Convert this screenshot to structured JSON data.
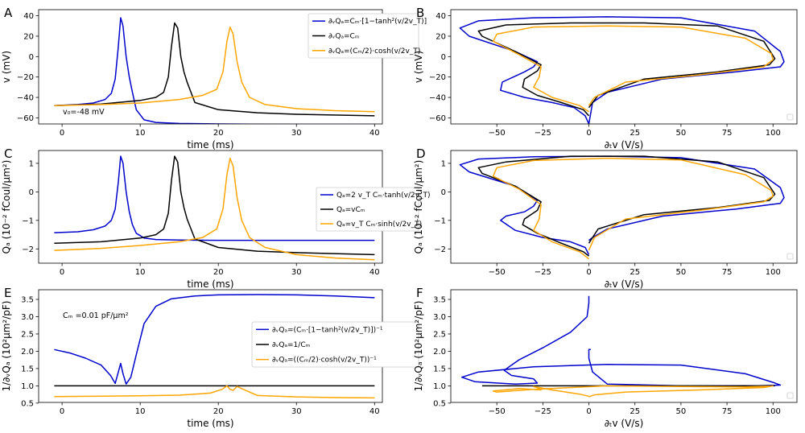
{
  "colors": {
    "blue": "#0000cc",
    "black": "#000000",
    "orange": "#ffa500"
  },
  "chart_data": [
    {
      "id": "A",
      "panel_label": "A",
      "type": "line",
      "xlabel": "time (ms)",
      "ylabel": "v (mV)",
      "xlim": [
        -3,
        41
      ],
      "ylim": [
        -66,
        46
      ],
      "xticks": [
        0,
        10,
        20,
        30,
        40
      ],
      "xtick_labels": [
        "0",
        "10",
        "20",
        "30",
        "40"
      ],
      "yticks": [
        -60,
        -40,
        -20,
        0,
        20,
        40
      ],
      "ytick_labels": [
        "−60",
        "−40",
        "−20",
        "0",
        "20",
        "40"
      ],
      "annotation": "v₀=-48 mV",
      "legend": [
        {
          "color": "blue",
          "label": "∂ᵥQₐ=Cₘ·[1−tanh²(v/2v_T)]"
        },
        {
          "color": "black",
          "label": "∂ᵥQₐ=Cₘ"
        },
        {
          "color": "orange",
          "label": "∂ᵥQₐ=(Cₘ/2)·cosh(v/2v_T)"
        }
      ],
      "series": [
        {
          "color": "blue",
          "x": [
            -1,
            2,
            4,
            5.5,
            6.3,
            6.8,
            7.2,
            7.5,
            7.8,
            8.2,
            8.6,
            9.0,
            9.5,
            10.5,
            12,
            15,
            20,
            30,
            40
          ],
          "y": [
            -48,
            -47,
            -45.5,
            -42,
            -36,
            -22,
            10,
            38,
            30,
            0,
            -20,
            -35,
            -52,
            -62,
            -64.5,
            -65.5,
            -66,
            -66.5,
            -66.5
          ]
        },
        {
          "color": "black",
          "x": [
            -1,
            5,
            10,
            12,
            13,
            13.6,
            14.0,
            14.4,
            14.8,
            15.2,
            15.6,
            16.0,
            17,
            20,
            25,
            30,
            40
          ],
          "y": [
            -48,
            -46.5,
            -43,
            -40,
            -35,
            -20,
            10,
            33,
            28,
            0,
            -15,
            -25,
            -45,
            -52,
            -55,
            -56.5,
            -58
          ]
        },
        {
          "color": "orange",
          "x": [
            -1,
            5,
            10,
            15,
            18,
            19.8,
            20.6,
            21.1,
            21.5,
            21.9,
            22.4,
            23,
            24,
            26,
            30,
            35,
            40
          ],
          "y": [
            -48,
            -47,
            -45.5,
            -42,
            -38,
            -32,
            -15,
            15,
            29,
            22,
            -5,
            -25,
            -40,
            -47,
            -51,
            -53,
            -54
          ]
        }
      ]
    },
    {
      "id": "B",
      "panel_label": "B",
      "type": "line",
      "xlabel": "∂ₜv (V/s)",
      "ylabel": "v (mV)",
      "xlim": [
        -75,
        113
      ],
      "ylim": [
        -66,
        46
      ],
      "xticks": [
        -50,
        -25,
        0,
        25,
        50,
        75,
        100
      ],
      "xtick_labels": [
        "−50",
        "−25",
        "0",
        "25",
        "50",
        "75",
        "100"
      ],
      "yticks": [
        -60,
        -40,
        -20,
        0,
        20,
        40
      ],
      "ytick_labels": [
        "−60",
        "−40",
        "−20",
        "0",
        "20",
        "40"
      ],
      "series": [
        {
          "color": "blue",
          "x": [
            0,
            -2,
            -8,
            -20,
            -35,
            -48,
            -47,
            -35,
            -30,
            -28,
            -40,
            -65,
            -70,
            -60,
            -30,
            10,
            50,
            90,
            104,
            106,
            104,
            80,
            40,
            10,
            2,
            0
          ],
          "y": [
            -66,
            -58,
            -50,
            -45,
            -40,
            -33,
            -25,
            -15,
            -10,
            -5,
            5,
            20,
            28,
            35,
            38,
            39,
            38,
            25,
            5,
            -5,
            -10,
            -15,
            -22,
            -35,
            -45,
            -66
          ]
        },
        {
          "color": "black",
          "x": [
            0,
            -3,
            -15,
            -28,
            -36,
            -35,
            -28,
            -26,
            -40,
            -58,
            -60,
            -45,
            -10,
            30,
            70,
            95,
            101,
            98,
            70,
            30,
            5,
            0
          ],
          "y": [
            -58,
            -52,
            -45,
            -38,
            -30,
            -22,
            -14,
            -8,
            5,
            20,
            25,
            31,
            33,
            33,
            30,
            15,
            -2,
            -8,
            -15,
            -22,
            -38,
            -50
          ]
        },
        {
          "color": "orange",
          "x": [
            0,
            -5,
            -20,
            -30,
            -27,
            -26,
            -38,
            -52,
            -50,
            -30,
            10,
            50,
            85,
            99,
            100,
            95,
            60,
            20,
            3,
            0
          ],
          "y": [
            -54,
            -48,
            -40,
            -30,
            -20,
            -10,
            2,
            15,
            22,
            29,
            30,
            29,
            18,
            3,
            -3,
            -10,
            -18,
            -25,
            -40,
            -48
          ]
        }
      ]
    },
    {
      "id": "C",
      "panel_label": "C",
      "type": "line",
      "xlabel": "time (ms)",
      "ylabel": "Qₐ (10⁻² fCoul/μm²)",
      "xlim": [
        -3,
        41
      ],
      "ylim": [
        -2.5,
        1.45
      ],
      "xticks": [
        0,
        10,
        20,
        30,
        40
      ],
      "xtick_labels": [
        "0",
        "10",
        "20",
        "30",
        "40"
      ],
      "yticks": [
        -2,
        -1,
        0,
        1
      ],
      "ytick_labels": [
        "−2",
        "−1",
        "0",
        "1"
      ],
      "legend": [
        {
          "color": "blue",
          "label": "Qₐ=2 v_T Cₘ·tanh(v/2v_T)"
        },
        {
          "color": "black",
          "label": "Qₐ=vCₘ"
        },
        {
          "color": "orange",
          "label": "Qₐ=v_T Cₘ·sinh(v/2v_T)"
        }
      ],
      "series": [
        {
          "color": "blue",
          "x": [
            -1,
            2,
            4,
            5.5,
            6.3,
            6.8,
            7.2,
            7.5,
            7.8,
            8.2,
            8.6,
            9.0,
            9.5,
            10.5,
            12,
            15,
            20,
            30,
            40
          ],
          "y": [
            -1.43,
            -1.4,
            -1.33,
            -1.2,
            -1.0,
            -0.6,
            0.35,
            1.25,
            1.0,
            0.0,
            -0.7,
            -1.15,
            -1.45,
            -1.62,
            -1.67,
            -1.69,
            -1.7,
            -1.7,
            -1.7
          ]
        },
        {
          "color": "black",
          "x": [
            -1,
            5,
            10,
            12,
            13,
            13.6,
            14.0,
            14.4,
            14.8,
            15.2,
            15.6,
            16.0,
            17,
            20,
            25,
            30,
            40
          ],
          "y": [
            -1.8,
            -1.75,
            -1.62,
            -1.5,
            -1.3,
            -0.75,
            0.4,
            1.25,
            1.05,
            0.0,
            -0.55,
            -0.95,
            -1.65,
            -1.95,
            -2.08,
            -2.13,
            -2.2
          ]
        },
        {
          "color": "orange",
          "x": [
            -1,
            5,
            10,
            15,
            18,
            19.8,
            20.6,
            21.1,
            21.5,
            21.9,
            22.4,
            23,
            24,
            26,
            30,
            35,
            40
          ],
          "y": [
            -2.05,
            -1.98,
            -1.88,
            -1.75,
            -1.6,
            -1.3,
            -0.6,
            0.6,
            1.18,
            0.9,
            -0.2,
            -1.0,
            -1.6,
            -1.95,
            -2.2,
            -2.32,
            -2.38
          ]
        }
      ]
    },
    {
      "id": "D",
      "panel_label": "D",
      "type": "line",
      "xlabel": "∂ₜv (V/s)",
      "ylabel": "Qₐ (10⁻² fCoul/μm²)",
      "xlim": [
        -75,
        113
      ],
      "ylim": [
        -2.5,
        1.45
      ],
      "xticks": [
        -50,
        -25,
        0,
        25,
        50,
        75,
        100
      ],
      "xtick_labels": [
        "−50",
        "−25",
        "0",
        "25",
        "50",
        "75",
        "100"
      ],
      "yticks": [
        -2,
        -1,
        0,
        1
      ],
      "ytick_labels": [
        "−2",
        "−1",
        "0",
        "1"
      ],
      "series": [
        {
          "color": "blue",
          "x": [
            0,
            -2,
            -10,
            -25,
            -40,
            -48,
            -45,
            -35,
            -30,
            -28,
            -40,
            -65,
            -70,
            -60,
            -30,
            10,
            50,
            90,
            104,
            106,
            104,
            80,
            40,
            10,
            2,
            0
          ],
          "y": [
            -2.2,
            -1.95,
            -1.75,
            -1.6,
            -1.35,
            -1.0,
            -0.85,
            -0.7,
            -0.5,
            -0.3,
            0.2,
            0.7,
            0.95,
            1.15,
            1.23,
            1.25,
            1.2,
            0.8,
            0.15,
            -0.2,
            -0.4,
            -0.6,
            -0.85,
            -1.3,
            -1.6,
            -1.7
          ]
        },
        {
          "color": "black",
          "x": [
            0,
            -3,
            -15,
            -28,
            -36,
            -35,
            -28,
            -26,
            -40,
            -58,
            -60,
            -45,
            -10,
            30,
            70,
            95,
            101,
            98,
            70,
            30,
            5,
            0
          ],
          "y": [
            -2.25,
            -2.1,
            -1.8,
            -1.45,
            -1.15,
            -0.95,
            -0.65,
            -0.35,
            0.2,
            0.65,
            0.85,
            1.05,
            1.25,
            1.25,
            1.05,
            0.5,
            -0.08,
            -0.3,
            -0.55,
            -0.8,
            -1.3,
            -1.8
          ]
        },
        {
          "color": "orange",
          "x": [
            0,
            -5,
            -20,
            -30,
            -27,
            -26,
            -38,
            -52,
            -50,
            -30,
            10,
            50,
            85,
            99,
            100,
            95,
            60,
            20,
            3,
            0
          ],
          "y": [
            -2.35,
            -2.1,
            -1.75,
            -1.35,
            -0.95,
            -0.45,
            0.1,
            0.55,
            0.85,
            1.1,
            1.18,
            1.12,
            0.6,
            0.05,
            -0.15,
            -0.35,
            -0.65,
            -0.95,
            -1.6,
            -2.05
          ]
        }
      ]
    },
    {
      "id": "E",
      "panel_label": "E",
      "type": "line",
      "xlabel": "time (ms)",
      "ylabel": "1/∂ᵥQₐ (10²μm²/pF)",
      "xlim": [
        -3,
        41
      ],
      "ylim": [
        0.52,
        3.78
      ],
      "xticks": [
        0,
        10,
        20,
        30,
        40
      ],
      "xtick_labels": [
        "0",
        "10",
        "20",
        "30",
        "40"
      ],
      "yticks": [
        0.5,
        1.0,
        1.5,
        2.0,
        2.5,
        3.0,
        3.5
      ],
      "ytick_labels": [
        "0.5",
        "1.0",
        "1.5",
        "2.0",
        "2.5",
        "3.0",
        "3.5"
      ],
      "annotation": "Cₘ =0.01 pF/μm²",
      "legend": [
        {
          "color": "blue",
          "label": "∂ᵥQₐ=(Cₘ·[1−tanh²(v/2v_T)])⁻¹"
        },
        {
          "color": "black",
          "label": "∂ᵥQₐ=1/Cₘ"
        },
        {
          "color": "orange",
          "label": "∂ᵥQₐ=((Cₘ/2)·cosh(v/2v_T))⁻¹"
        }
      ],
      "series": [
        {
          "color": "blue",
          "x": [
            -1,
            1,
            3,
            5,
            6.2,
            6.8,
            7.2,
            7.5,
            7.8,
            8.2,
            8.8,
            9.5,
            10.5,
            12,
            14,
            17,
            20,
            25,
            30,
            35,
            40
          ],
          "y": [
            2.05,
            1.95,
            1.8,
            1.6,
            1.3,
            1.07,
            1.4,
            1.65,
            1.35,
            1.05,
            1.25,
            1.9,
            2.8,
            3.3,
            3.52,
            3.6,
            3.63,
            3.64,
            3.63,
            3.6,
            3.55
          ]
        },
        {
          "color": "black",
          "x": [
            -1,
            40
          ],
          "y": [
            1.0,
            1.0
          ]
        },
        {
          "color": "orange",
          "x": [
            -1,
            5,
            10,
            15,
            19,
            20.5,
            21.1,
            21.5,
            21.9,
            22.4,
            23.2,
            25,
            30,
            35,
            40
          ],
          "y": [
            0.69,
            0.7,
            0.71,
            0.73,
            0.79,
            0.9,
            1.0,
            0.9,
            0.87,
            0.98,
            0.9,
            0.72,
            0.68,
            0.66,
            0.65
          ]
        }
      ]
    },
    {
      "id": "F",
      "panel_label": "F",
      "type": "line",
      "xlabel": "∂ₜv (V/s)",
      "ylabel": "1/∂ᵥQₐ (10²μm²/pF)",
      "xlim": [
        -75,
        113
      ],
      "ylim": [
        0.52,
        3.78
      ],
      "xticks": [
        -50,
        -25,
        0,
        25,
        50,
        75,
        100
      ],
      "xtick_labels": [
        "−50",
        "−25",
        "0",
        "25",
        "50",
        "75",
        "100"
      ],
      "yticks": [
        0.5,
        1.0,
        1.5,
        2.0,
        2.5,
        3.0,
        3.5
      ],
      "ytick_labels": [
        "0.5",
        "1.0",
        "1.5",
        "2.0",
        "2.5",
        "3.0",
        "3.5"
      ],
      "series": [
        {
          "color": "blue",
          "x": [
            0,
            0,
            -1,
            -10,
            -25,
            -38,
            -46,
            -42,
            -30,
            -28,
            -40,
            -62,
            -69,
            -60,
            -30,
            10,
            50,
            85,
            100,
            104,
            90,
            50,
            10,
            2,
            0,
            0,
            1
          ],
          "y": [
            3.6,
            3.4,
            3.0,
            2.55,
            2.1,
            1.75,
            1.45,
            1.3,
            1.2,
            1.08,
            1.05,
            1.12,
            1.25,
            1.4,
            1.55,
            1.62,
            1.6,
            1.35,
            1.1,
            1.02,
            1.0,
            1.0,
            1.05,
            1.4,
            1.8,
            2.05,
            2.05
          ]
        },
        {
          "color": "black",
          "x": [
            -58,
            101
          ],
          "y": [
            1.0,
            1.0
          ]
        },
        {
          "color": "orange",
          "x": [
            0,
            -5,
            -20,
            -30,
            -27,
            -26,
            -38,
            -52,
            -50,
            -30,
            10,
            50,
            85,
            99,
            100,
            95,
            60,
            20,
            3,
            0
          ],
          "y": [
            0.7,
            0.76,
            0.88,
            0.98,
            0.93,
            0.88,
            0.92,
            0.85,
            0.82,
            0.9,
            1.0,
            0.98,
            0.97,
            0.99,
            1.0,
            0.95,
            0.88,
            0.82,
            0.74,
            0.68
          ]
        }
      ]
    }
  ]
}
